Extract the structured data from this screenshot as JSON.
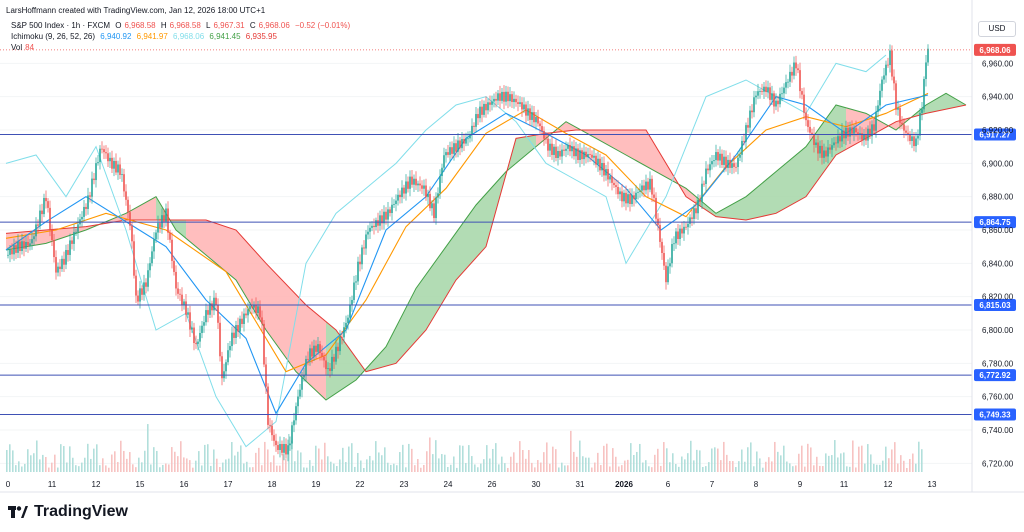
{
  "header": {
    "credit": "LarsHoffmann created with TradingView.com, Jan 12, 2026 18:00 UTC+1"
  },
  "legend": {
    "symbol": "S&P 500 Index · 1h · FXCM",
    "o_label": "O",
    "o_value": "6,968.58",
    "h_label": "H",
    "h_value": "6,968.58",
    "l_label": "L",
    "l_value": "6,967.31",
    "c_label": "C",
    "c_value": "6,968.06",
    "change": "−0.52 (−0.01%)",
    "ichimoku_label": "Ichimoku (9, 26, 52, 26)",
    "ichimoku_values": [
      "6,940.92",
      "6,941.97",
      "6,968.06",
      "6,941.45",
      "6,935.95"
    ],
    "vol_label": "Vol",
    "vol_value": "84"
  },
  "currency": "USD",
  "brand": {
    "name": "TradingView"
  },
  "colors": {
    "up": "#26a69a",
    "down": "#ef5350",
    "conversion": "#2196f3",
    "base": "#ff9800",
    "lagging": "#80deea",
    "span_a": "#43a047",
    "span_b": "#e53935",
    "cloud_bull": "#a5d6a7",
    "cloud_bear": "#ffb3b3",
    "hline": "#3f51b5",
    "price_tag": "#ef5350",
    "hline_tag": "#2962ff"
  },
  "chart_data": {
    "type": "candlestick",
    "x_ticks": [
      "0",
      "11",
      "12",
      "15",
      "16",
      "17",
      "18",
      "19",
      "22",
      "23",
      "24",
      "26",
      "30",
      "31",
      "2026",
      "6",
      "7",
      "8",
      "9",
      "11",
      "12",
      "13"
    ],
    "y_ticks": [
      "6,960.00",
      "6,940.00",
      "6,920.00",
      "6,900.00",
      "6,880.00",
      "6,860.00",
      "6,840.00",
      "6,820.00",
      "6,800.00",
      "6,780.00",
      "6,760.00",
      "6,740.00",
      "6,720.00"
    ],
    "ylim": [
      6710,
      6980
    ],
    "last_price": 6968.06,
    "last_price_label": "6,968.06",
    "horizontal_levels": [
      {
        "value": 6917.27,
        "label": "6,917.27"
      },
      {
        "value": 6864.75,
        "label": "6,864.75"
      },
      {
        "value": 6815.03,
        "label": "6,815.03"
      },
      {
        "value": 6772.92,
        "label": "6,772.92"
      },
      {
        "value": 6749.33,
        "label": "6,749.33"
      }
    ],
    "close_path": [
      [
        0,
        6845
      ],
      [
        12,
        6850
      ],
      [
        25,
        6852
      ],
      [
        40,
        6880
      ],
      [
        50,
        6835
      ],
      [
        58,
        6842
      ],
      [
        70,
        6860
      ],
      [
        82,
        6878
      ],
      [
        95,
        6910
      ],
      [
        105,
        6900
      ],
      [
        115,
        6895
      ],
      [
        125,
        6860
      ],
      [
        130,
        6818
      ],
      [
        140,
        6828
      ],
      [
        150,
        6860
      ],
      [
        160,
        6870
      ],
      [
        170,
        6825
      ],
      [
        180,
        6812
      ],
      [
        190,
        6790
      ],
      [
        200,
        6810
      ],
      [
        210,
        6818
      ],
      [
        216,
        6770
      ],
      [
        225,
        6795
      ],
      [
        235,
        6805
      ],
      [
        245,
        6815
      ],
      [
        255,
        6810
      ],
      [
        262,
        6745
      ],
      [
        270,
        6730
      ],
      [
        282,
        6728
      ],
      [
        292,
        6760
      ],
      [
        302,
        6785
      ],
      [
        312,
        6790
      ],
      [
        322,
        6775
      ],
      [
        332,
        6790
      ],
      [
        342,
        6808
      ],
      [
        352,
        6838
      ],
      [
        362,
        6860
      ],
      [
        372,
        6865
      ],
      [
        382,
        6870
      ],
      [
        392,
        6880
      ],
      [
        405,
        6890
      ],
      [
        418,
        6885
      ],
      [
        428,
        6870
      ],
      [
        438,
        6905
      ],
      [
        450,
        6910
      ],
      [
        462,
        6915
      ],
      [
        472,
        6930
      ],
      [
        482,
        6935
      ],
      [
        492,
        6940
      ],
      [
        502,
        6940
      ],
      [
        515,
        6935
      ],
      [
        522,
        6930
      ],
      [
        532,
        6925
      ],
      [
        542,
        6910
      ],
      [
        552,
        6905
      ],
      [
        562,
        6910
      ],
      [
        572,
        6905
      ],
      [
        585,
        6905
      ],
      [
        595,
        6898
      ],
      [
        605,
        6890
      ],
      [
        615,
        6880
      ],
      [
        625,
        6878
      ],
      [
        635,
        6885
      ],
      [
        645,
        6888
      ],
      [
        655,
        6850
      ],
      [
        660,
        6830
      ],
      [
        668,
        6855
      ],
      [
        680,
        6862
      ],
      [
        692,
        6875
      ],
      [
        700,
        6895
      ],
      [
        710,
        6905
      ],
      [
        720,
        6900
      ],
      [
        730,
        6898
      ],
      [
        740,
        6920
      ],
      [
        750,
        6942
      ],
      [
        760,
        6945
      ],
      [
        770,
        6935
      ],
      [
        780,
        6948
      ],
      [
        790,
        6960
      ],
      [
        800,
        6925
      ],
      [
        810,
        6910
      ],
      [
        818,
        6905
      ],
      [
        828,
        6912
      ],
      [
        838,
        6918
      ],
      [
        848,
        6920
      ],
      [
        858,
        6915
      ],
      [
        868,
        6922
      ],
      [
        876,
        6950
      ],
      [
        884,
        6965
      ],
      [
        890,
        6935
      ],
      [
        896,
        6922
      ],
      [
        904,
        6915
      ],
      [
        910,
        6912
      ],
      [
        916,
        6935
      ],
      [
        920,
        6962
      ],
      [
        922,
        6968
      ]
    ],
    "conversion_path": [
      [
        0,
        6848
      ],
      [
        40,
        6865
      ],
      [
        80,
        6880
      ],
      [
        120,
        6865
      ],
      [
        160,
        6850
      ],
      [
        200,
        6818
      ],
      [
        240,
        6795
      ],
      [
        270,
        6750
      ],
      [
        300,
        6780
      ],
      [
        340,
        6800
      ],
      [
        380,
        6860
      ],
      [
        420,
        6880
      ],
      [
        460,
        6915
      ],
      [
        500,
        6930
      ],
      [
        540,
        6918
      ],
      [
        580,
        6905
      ],
      [
        620,
        6885
      ],
      [
        655,
        6860
      ],
      [
        690,
        6875
      ],
      [
        730,
        6905
      ],
      [
        770,
        6940
      ],
      [
        800,
        6935
      ],
      [
        840,
        6918
      ],
      [
        880,
        6935
      ],
      [
        922,
        6941
      ]
    ],
    "base_path": [
      [
        0,
        6855
      ],
      [
        50,
        6860
      ],
      [
        100,
        6870
      ],
      [
        160,
        6860
      ],
      [
        220,
        6835
      ],
      [
        280,
        6775
      ],
      [
        320,
        6785
      ],
      [
        360,
        6818
      ],
      [
        400,
        6862
      ],
      [
        440,
        6885
      ],
      [
        480,
        6918
      ],
      [
        520,
        6932
      ],
      [
        560,
        6918
      ],
      [
        600,
        6905
      ],
      [
        640,
        6880
      ],
      [
        680,
        6868
      ],
      [
        720,
        6898
      ],
      [
        760,
        6920
      ],
      [
        800,
        6928
      ],
      [
        840,
        6922
      ],
      [
        880,
        6930
      ],
      [
        922,
        6942
      ]
    ],
    "lagging_path": [
      [
        0,
        6900
      ],
      [
        30,
        6905
      ],
      [
        60,
        6880
      ],
      [
        90,
        6910
      ],
      [
        120,
        6860
      ],
      [
        150,
        6800
      ],
      [
        180,
        6810
      ],
      [
        210,
        6760
      ],
      [
        240,
        6730
      ],
      [
        270,
        6745
      ],
      [
        300,
        6840
      ],
      [
        330,
        6870
      ],
      [
        360,
        6885
      ],
      [
        390,
        6900
      ],
      [
        420,
        6920
      ],
      [
        450,
        6935
      ],
      [
        480,
        6940
      ],
      [
        510,
        6925
      ],
      [
        540,
        6900
      ],
      [
        570,
        6890
      ],
      [
        600,
        6880
      ],
      [
        620,
        6840
      ],
      [
        640,
        6860
      ],
      [
        660,
        6880
      ],
      [
        700,
        6940
      ],
      [
        740,
        6950
      ],
      [
        770,
        6940
      ],
      [
        800,
        6930
      ],
      [
        830,
        6960
      ],
      [
        860,
        6955
      ],
      [
        880,
        6965
      ]
    ],
    "span_a_path": [
      [
        0,
        6848
      ],
      [
        40,
        6852
      ],
      [
        80,
        6860
      ],
      [
        120,
        6870
      ],
      [
        150,
        6880
      ],
      [
        170,
        6860
      ],
      [
        200,
        6845
      ],
      [
        230,
        6830
      ],
      [
        260,
        6800
      ],
      [
        290,
        6775
      ],
      [
        320,
        6758
      ],
      [
        350,
        6770
      ],
      [
        380,
        6790
      ],
      [
        410,
        6825
      ],
      [
        440,
        6850
      ],
      [
        470,
        6875
      ],
      [
        500,
        6895
      ],
      [
        530,
        6910
      ],
      [
        560,
        6925
      ],
      [
        590,
        6915
      ],
      [
        620,
        6905
      ],
      [
        650,
        6895
      ],
      [
        680,
        6885
      ],
      [
        710,
        6870
      ],
      [
        740,
        6880
      ],
      [
        770,
        6895
      ],
      [
        800,
        6910
      ],
      [
        830,
        6935
      ],
      [
        860,
        6930
      ],
      [
        890,
        6920
      ],
      [
        920,
        6935
      ],
      [
        940,
        6942
      ],
      [
        960,
        6935
      ]
    ],
    "span_b_path": [
      [
        0,
        6858
      ],
      [
        40,
        6860
      ],
      [
        80,
        6862
      ],
      [
        120,
        6866
      ],
      [
        170,
        6866
      ],
      [
        200,
        6866
      ],
      [
        230,
        6860
      ],
      [
        260,
        6840
      ],
      [
        300,
        6815
      ],
      [
        330,
        6800
      ],
      [
        360,
        6775
      ],
      [
        390,
        6780
      ],
      [
        420,
        6800
      ],
      [
        450,
        6830
      ],
      [
        480,
        6850
      ],
      [
        510,
        6915
      ],
      [
        540,
        6918
      ],
      [
        570,
        6920
      ],
      [
        600,
        6920
      ],
      [
        640,
        6920
      ],
      [
        680,
        6880
      ],
      [
        710,
        6868
      ],
      [
        740,
        6866
      ],
      [
        770,
        6870
      ],
      [
        800,
        6880
      ],
      [
        830,
        6905
      ],
      [
        860,
        6915
      ],
      [
        890,
        6925
      ],
      [
        920,
        6930
      ],
      [
        960,
        6935
      ]
    ],
    "cloud_segments": [
      {
        "from": 0,
        "to": 150,
        "trend": "bearish"
      },
      {
        "from": 150,
        "to": 180,
        "trend": "bullish"
      },
      {
        "from": 180,
        "to": 320,
        "trend": "bearish"
      },
      {
        "from": 320,
        "to": 530,
        "trend": "bullish"
      },
      {
        "from": 530,
        "to": 690,
        "trend": "bearish"
      },
      {
        "from": 690,
        "to": 840,
        "trend": "bullish"
      },
      {
        "from": 840,
        "to": 905,
        "trend": "bearish"
      },
      {
        "from": 905,
        "to": 960,
        "trend": "bullish"
      }
    ]
  }
}
